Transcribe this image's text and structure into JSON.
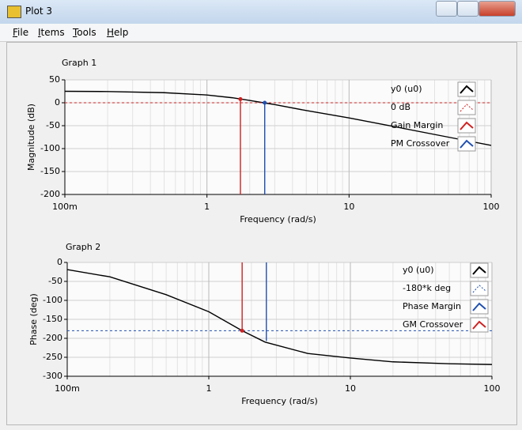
{
  "window": {
    "title": "Plot 3"
  },
  "menu": [
    "File",
    "Items",
    "Tools",
    "Help"
  ],
  "chart_data": [
    {
      "type": "line",
      "title": "Graph 1",
      "x_label": "Frequency (rad/s)",
      "y_label": "Magnitude (dB)",
      "xscale": "log",
      "xlim": [
        0.1,
        100
      ],
      "ylim": [
        -200,
        50
      ],
      "xticks": [
        {
          "value": 0.1,
          "label": "100m"
        },
        1,
        10,
        100
      ],
      "yticks": [
        50,
        0,
        -50,
        -100,
        -150,
        -200
      ],
      "grid": true,
      "series": [
        {
          "name": "y0 (u0)",
          "color": "#000000",
          "x": [
            0.1,
            0.2,
            0.5,
            1,
            1.5,
            2,
            2.5,
            3,
            5,
            10,
            20,
            50,
            100
          ],
          "values": [
            25,
            24.5,
            22,
            17,
            11,
            5,
            0,
            -4,
            -17,
            -33,
            -51,
            -75,
            -93
          ]
        },
        {
          "name": "0 dB",
          "color": "#d02020",
          "dash": true,
          "x": [
            0.1,
            100
          ],
          "values": [
            0,
            0
          ]
        },
        {
          "name": "Gain Margin",
          "color": "#d02020",
          "marker": "circle",
          "x": [
            1.72,
            1.72
          ],
          "values": [
            -200,
            8
          ]
        },
        {
          "name": "PM Crossover",
          "color": "#1f4fb0",
          "marker": "circle",
          "x": [
            2.55,
            2.55
          ],
          "values": [
            -200,
            0
          ]
        }
      ]
    },
    {
      "type": "line",
      "title": "Graph 2",
      "x_label": "Frequency (rad/s)",
      "y_label": "Phase (deg)",
      "xscale": "log",
      "xlim": [
        0.1,
        100
      ],
      "ylim": [
        -300,
        0
      ],
      "xticks": [
        {
          "value": 0.1,
          "label": "100m"
        },
        1,
        10,
        100
      ],
      "yticks": [
        0,
        -50,
        -100,
        -150,
        -200,
        -250,
        -300
      ],
      "grid": true,
      "series": [
        {
          "name": "y0 (u0)",
          "color": "#000000",
          "x": [
            0.1,
            0.2,
            0.5,
            1,
            1.72,
            2.5,
            5,
            10,
            20,
            50,
            100
          ],
          "values": [
            -19,
            -38,
            -85,
            -130,
            -180,
            -210,
            -240,
            -252,
            -262,
            -267,
            -269
          ]
        },
        {
          "name": "-180*k deg",
          "color": "#1f4fb0",
          "dash": true,
          "x": [
            0.1,
            100
          ],
          "values": [
            -180,
            -180
          ]
        },
        {
          "name": "Phase Margin",
          "color": "#1f4fb0",
          "x": [
            2.55,
            2.55
          ],
          "values": [
            0,
            -207
          ]
        },
        {
          "name": "GM Crossover",
          "color": "#d02020",
          "marker": "circle",
          "x": [
            1.72,
            1.72
          ],
          "values": [
            0,
            -180
          ]
        }
      ]
    }
  ]
}
